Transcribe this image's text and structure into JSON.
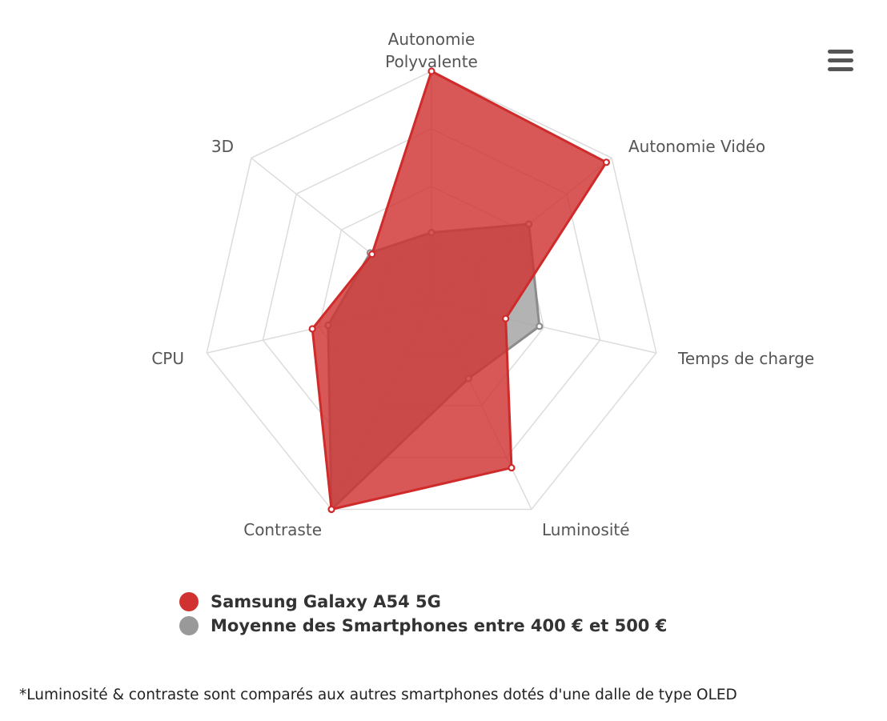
{
  "menu": {
    "icon": "hamburger-menu-icon"
  },
  "chart_data": {
    "type": "radar",
    "axes": [
      [
        "Autonomie",
        "Polyvalente"
      ],
      [
        "Autonomie Vidéo"
      ],
      [
        "Temps de charge"
      ],
      [
        "Luminosité"
      ],
      [
        "Contraste"
      ],
      [
        "CPU"
      ],
      [
        "3D"
      ]
    ],
    "range": [
      0,
      100
    ],
    "grid_levels": 4,
    "grid": true,
    "legend_position": "bottom",
    "series": [
      {
        "name": "Moyenne des Smartphones entre 400 € et 500 €",
        "color": "#a6a6a6",
        "stroke": "#8c8c8c",
        "values": [
          30,
          54,
          48,
          37,
          100,
          46,
          34
        ]
      },
      {
        "name": "Samsung Galaxy A54 5G",
        "color": "#d03232",
        "stroke": "#cf2b2b",
        "values": [
          100,
          97,
          33,
          80,
          100,
          53,
          33
        ]
      }
    ]
  },
  "footnote": "*Luminosité & contraste sont comparés aux autres smartphones dotés d'une dalle de type OLED"
}
